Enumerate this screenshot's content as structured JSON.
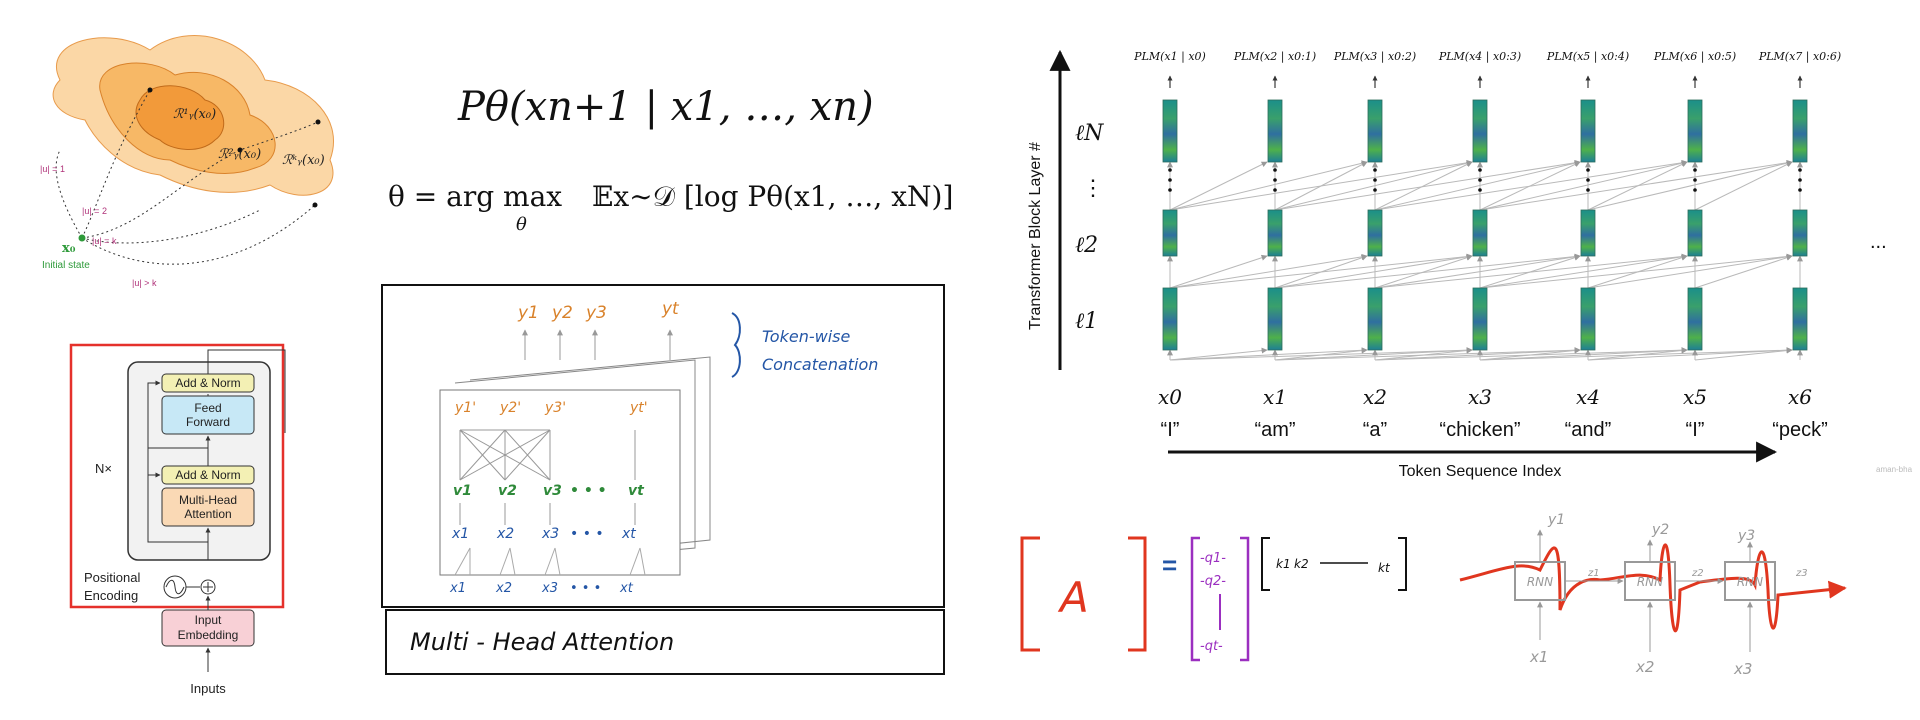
{
  "reachability": {
    "labels": [
      "ℛ¹ᵧ(x₀)",
      "ℛ²ᵧ(x₀)",
      "ℛᵏᵧ(x₀)"
    ],
    "norms": [
      "|u| = 1",
      "|u| = 2",
      "|u| = k",
      "|u| > k"
    ],
    "x0": "x₀",
    "initial_state": "Initial state",
    "colors": {
      "outer": "#fbd7a6",
      "mid": "#f7b866",
      "inner": "#f29a3a",
      "green": "#2e9a3a",
      "pink": "#b0337a"
    }
  },
  "formulas": {
    "top": "Pθ(xn+1 | x1, …, xn)",
    "objective": "θ = arg max",
    "objective_sub": "θ",
    "objective_rhs": "𝔼x∼𝒟 [log Pθ(x1, …, xN)]"
  },
  "transformer_block": {
    "add_norm_top": "Add & Norm",
    "feed_forward_1": "Feed",
    "feed_forward_2": "Forward",
    "nx": "N×",
    "add_norm_bottom": "Add & Norm",
    "mha_1": "Multi-Head",
    "mha_2": "Attention",
    "pos_enc_1": "Positional",
    "pos_enc_2": "Encoding",
    "input_emb_1": "Input",
    "input_emb_2": "Embedding",
    "inputs": "Inputs",
    "highlight_color": "#e5312b"
  },
  "mha_sketch": {
    "outputs": [
      "y1",
      "y2",
      "y3",
      "yt"
    ],
    "concat_note_1": "Token-wise",
    "concat_note_2": "Concatenation",
    "inner_outputs": [
      "y1'",
      "y2'",
      "y3'",
      "yt'"
    ],
    "values": [
      "v1",
      "v2",
      "v3",
      "• • •",
      "vt"
    ],
    "keys": [
      "x1",
      "x2",
      "x3",
      "• • •",
      "xt"
    ],
    "inputs": [
      "x1",
      "x2",
      "x3",
      "• • •",
      "xt"
    ],
    "caption": "Multi - Head Attention",
    "colors": {
      "orange": "#d9822b",
      "green": "#2f8a3a",
      "blue": "#2456a6"
    }
  },
  "layer_diagram": {
    "y_axis": "Transformer Block Layer #",
    "x_axis": "Token Sequence Index",
    "layers": [
      "ℓN",
      "⋮",
      "ℓ2",
      "ℓ1"
    ],
    "probs": [
      "PLM(x1 | x0)",
      "PLM(x2 | x0:1)",
      "PLM(x3 | x0:2)",
      "PLM(x4 | x0:3)",
      "PLM(x5 | x0:4)",
      "PLM(x6 | x0:5)",
      "PLM(x7 | x0:6)"
    ],
    "tokens": [
      "x0",
      "x1",
      "x2",
      "x3",
      "x4",
      "x5",
      "x6"
    ],
    "words": [
      "“I”",
      "“am”",
      "“a”",
      "“chicken”",
      "“and”",
      "“I”",
      "“peck”"
    ],
    "ellipsis": "...",
    "watermark": "aman-bha"
  },
  "matrix_sketch": {
    "a": "A",
    "equals": "=",
    "queries": [
      "-q1-",
      "-q2-",
      "-qt-"
    ],
    "keys": [
      "k1",
      "k2",
      "kt"
    ],
    "colors": {
      "red": "#e0361f",
      "purple": "#9b2fc0",
      "blue": "#2456a6"
    }
  },
  "rnn_sketch": {
    "cells": [
      "RNN",
      "RNN",
      "RNN"
    ],
    "outputs": [
      "y1",
      "y2",
      "y3"
    ],
    "inputs": [
      "x1",
      "x2",
      "x3"
    ],
    "states": [
      "z1",
      "z2",
      "z3"
    ]
  }
}
